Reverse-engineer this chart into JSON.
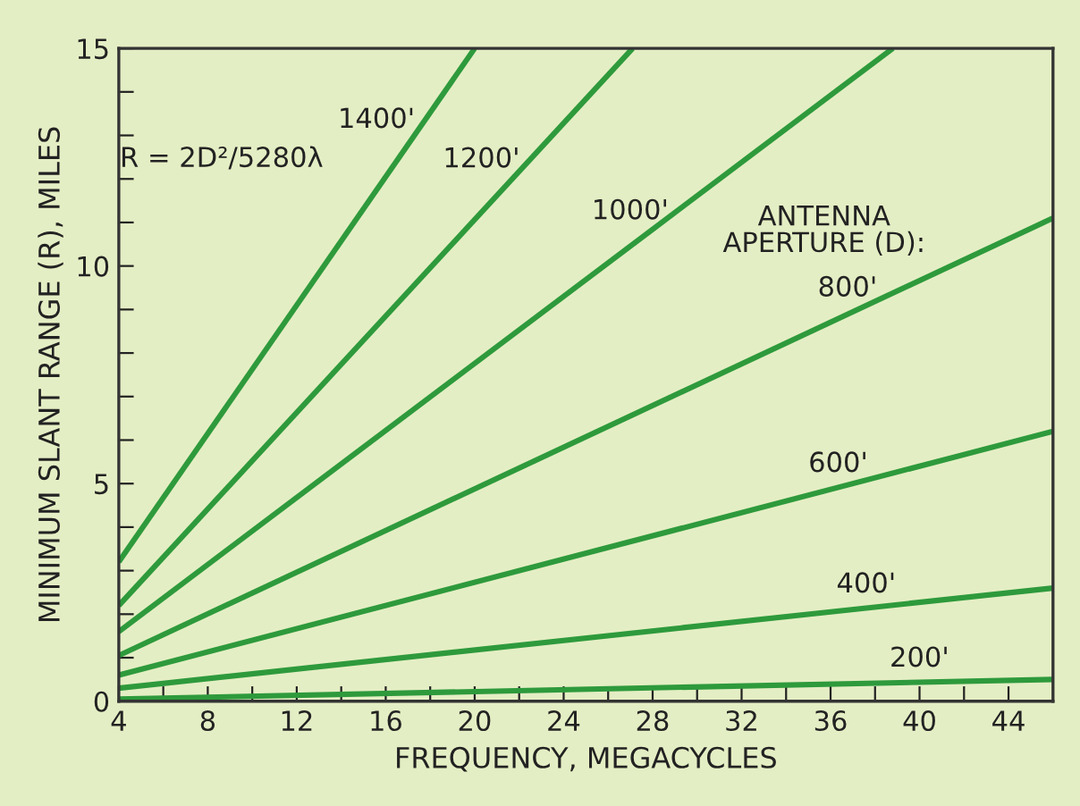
{
  "chart_data": {
    "type": "line",
    "xlabel": "FREQUENCY, MEGACYCLES",
    "ylabel": "MINIMUM SLANT RANGE (R), MILES",
    "series": [
      {
        "name": "1400'",
        "color": "#2e9a3c",
        "x": [
          4,
          20
        ],
        "values": [
          3.2,
          15
        ]
      },
      {
        "name": "1200'",
        "color": "#2e9a3c",
        "x": [
          4,
          27.1
        ],
        "values": [
          2.2,
          15
        ]
      },
      {
        "name": "1000'",
        "color": "#2e9a3c",
        "x": [
          4,
          38.8
        ],
        "values": [
          1.6,
          15
        ]
      },
      {
        "name": "800'",
        "color": "#2e9a3c",
        "x": [
          4,
          46
        ],
        "values": [
          1.05,
          11.1
        ]
      },
      {
        "name": "600'",
        "color": "#2e9a3c",
        "x": [
          4,
          46
        ],
        "values": [
          0.6,
          6.2
        ]
      },
      {
        "name": "400'",
        "color": "#2e9a3c",
        "x": [
          4,
          46
        ],
        "values": [
          0.3,
          2.6
        ]
      },
      {
        "name": "200'",
        "color": "#2e9a3c",
        "x": [
          4,
          46
        ],
        "values": [
          0.05,
          0.5
        ]
      }
    ],
    "annotations": [
      "R = 2D²/5280λ",
      "ANTENNA\nAPERTURE (D):"
    ],
    "xlim": [
      4,
      46
    ],
    "ylim": [
      0,
      15
    ],
    "xticks": [
      4,
      {
        "value": 6,
        "label": null
      },
      8,
      {
        "value": 10,
        "label": null
      },
      12,
      {
        "value": 14,
        "label": null
      },
      16,
      {
        "value": 18,
        "label": null
      },
      20,
      {
        "value": 22,
        "label": null
      },
      24,
      {
        "value": 26,
        "label": null
      },
      28,
      {
        "value": 30,
        "label": null
      },
      32,
      {
        "value": 34,
        "label": null
      },
      36,
      {
        "value": 38,
        "label": null
      },
      40,
      {
        "value": 42,
        "label": null
      },
      44
    ],
    "yticks": [
      0,
      {
        "value": 1,
        "label": null
      },
      {
        "value": 2,
        "label": null
      },
      {
        "value": 3,
        "label": null
      },
      {
        "value": 4,
        "label": null
      },
      5,
      {
        "value": 6,
        "label": null
      },
      {
        "value": 7,
        "label": null
      },
      {
        "value": 8,
        "label": null
      },
      {
        "value": 9,
        "label": null
      },
      10,
      {
        "value": 11,
        "label": null
      },
      {
        "value": 12,
        "label": null
      },
      {
        "value": 13,
        "label": null
      },
      {
        "value": 14,
        "label": null
      },
      15
    ],
    "grid": false,
    "legend": false,
    "marker": "none",
    "line_style": "solid"
  }
}
